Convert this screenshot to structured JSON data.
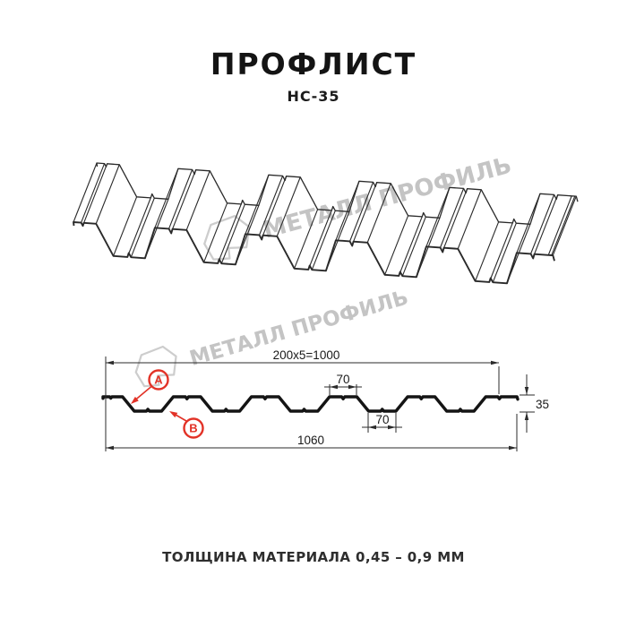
{
  "header": {
    "title": "ПРОФЛИСТ",
    "subtitle": "НС-35"
  },
  "watermark": {
    "brand": "МЕТАЛЛ ПРОФИЛЬ"
  },
  "section": {
    "dim_pitch": "200x5=1000",
    "dim_crest_width": "70",
    "dim_valley_width": "70",
    "dim_overall_width": "1060",
    "dim_height": "35",
    "label_a": "A",
    "label_b": "B"
  },
  "footer": {
    "note": "ТОЛЩИНА МАТЕРИАЛА 0,45 – 0,9 ММ"
  },
  "colors": {
    "accent_red": "#E23227",
    "drawing_line": "#2A2A2A",
    "section_line": "#141414",
    "dim_line": "#2b2b2b",
    "watermark_gray": "#C6C6C6"
  }
}
